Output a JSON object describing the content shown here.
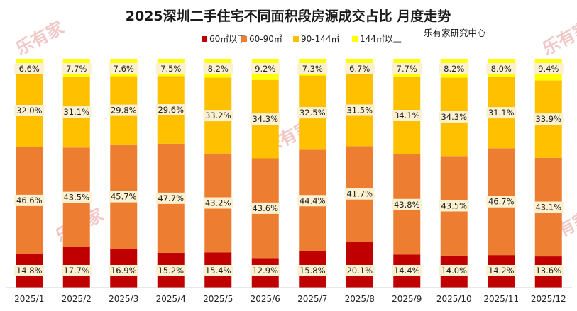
{
  "chart_data": {
    "type": "bar",
    "stacked": true,
    "normalized": true,
    "title": "2025深圳二手住宅不同面积段房源成交占比 月度走势",
    "source": "乐有家研究中心",
    "watermark": "乐有家",
    "categories": [
      "2025/1",
      "2025/2",
      "2025/3",
      "2025/4",
      "2025/5",
      "2025/6",
      "2025/7",
      "2025/8",
      "2025/9",
      "2025/10",
      "2025/11",
      "2025/12"
    ],
    "series": [
      {
        "name": "60㎡以下",
        "color": "#c00000",
        "values": [
          14.8,
          17.7,
          16.9,
          15.2,
          15.4,
          12.9,
          15.8,
          20.1,
          14.4,
          14.0,
          14.2,
          13.6
        ]
      },
      {
        "name": "60-90㎡",
        "color": "#ed7d31",
        "values": [
          46.6,
          43.5,
          45.7,
          47.7,
          43.2,
          43.6,
          44.4,
          41.7,
          43.8,
          43.5,
          46.7,
          43.1
        ]
      },
      {
        "name": "90-144㎡",
        "color": "#ffc000",
        "values": [
          32.0,
          31.1,
          29.8,
          29.6,
          33.2,
          34.3,
          32.5,
          31.5,
          34.1,
          34.3,
          31.1,
          33.9
        ]
      },
      {
        "name": "144㎡以上",
        "color": "#ffff00",
        "values": [
          6.6,
          7.7,
          7.6,
          7.5,
          8.2,
          9.2,
          7.3,
          6.7,
          7.7,
          8.2,
          8.0,
          9.4
        ]
      }
    ],
    "ylim": [
      0,
      100
    ],
    "xlabel": "",
    "ylabel": "",
    "legend_position": "top"
  }
}
